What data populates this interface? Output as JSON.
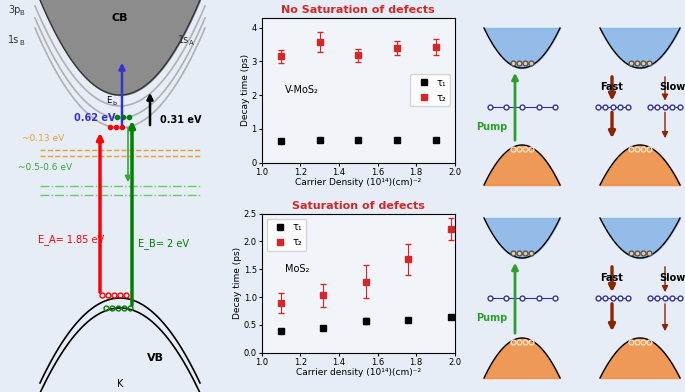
{
  "chart_data": [
    {
      "type": "scatter",
      "title": "No Saturation of defects",
      "x_label": "Carrier Density (10¹⁴)(cm)⁻²",
      "y_label": "Decay time (ps)",
      "annotation": "V-MoS₂",
      "xlim": [
        1.0,
        2.0
      ],
      "xticks": [
        1.0,
        1.2,
        1.4,
        1.6,
        1.8,
        2.0
      ],
      "ylim": [
        0,
        4.3
      ],
      "yticks": [
        0,
        1,
        2,
        3,
        4
      ],
      "legend": "center right",
      "series": [
        {
          "name": "τ₁",
          "color": "#000000",
          "marker": "s",
          "x": [
            1.1,
            1.3,
            1.5,
            1.7,
            1.9
          ],
          "values": [
            0.65,
            0.66,
            0.66,
            0.66,
            0.66
          ],
          "errors": [
            0.02,
            0.02,
            0.02,
            0.02,
            0.02
          ]
        },
        {
          "name": "τ₂",
          "color": "#d62728",
          "marker": "s",
          "x": [
            1.1,
            1.3,
            1.5,
            1.7,
            1.9
          ],
          "values": [
            3.15,
            3.57,
            3.18,
            3.4,
            3.43
          ],
          "errors": [
            0.2,
            0.3,
            0.2,
            0.2,
            0.25
          ]
        }
      ]
    },
    {
      "type": "scatter",
      "title": "Saturation of defects",
      "x_label": "Carrier density (10¹⁴)(cm)⁻²",
      "y_label": "Decay time (ps)",
      "annotation": "MoS₂",
      "xlim": [
        1.0,
        2.0
      ],
      "xticks": [
        1.0,
        1.2,
        1.4,
        1.6,
        1.8,
        2.0
      ],
      "ylim": [
        0.0,
        2.5
      ],
      "yticks": [
        0.0,
        0.5,
        1.0,
        1.5,
        2.0,
        2.5
      ],
      "legend": "upper left",
      "series": [
        {
          "name": "τ₁",
          "color": "#000000",
          "marker": "s",
          "x": [
            1.1,
            1.32,
            1.54,
            1.76,
            1.98
          ],
          "values": [
            0.39,
            0.45,
            0.57,
            0.59,
            0.64
          ],
          "errors": [
            0.02,
            0.04,
            0.05,
            0.03,
            0.03
          ]
        },
        {
          "name": "τ₂",
          "color": "#d62728",
          "marker": "s",
          "x": [
            1.1,
            1.32,
            1.54,
            1.76,
            1.98
          ],
          "values": [
            0.9,
            1.03,
            1.28,
            1.68,
            2.22
          ],
          "errors": [
            0.18,
            0.2,
            0.3,
            0.28,
            0.2
          ]
        }
      ]
    }
  ],
  "band_diagram": {
    "levels": [
      {
        "text": "3p",
        "sub": "B"
      },
      {
        "text": "1s",
        "sub": "B"
      },
      {
        "text": "1s",
        "sub": "A"
      }
    ],
    "cb": "CB",
    "vb": "VB",
    "k_point": "K",
    "binding": {
      "text": "E",
      "sub": "b"
    },
    "blue_energy": "0.62 eV",
    "black_energy": "0.31 eV",
    "orange_energy": "~0.13 eV",
    "green_energy": "~0.5-0.6 eV",
    "red_transition": "E_A= 1.85 eV",
    "green_transition": "E_B= 2 eV"
  },
  "schematics": {
    "pump": "Pump",
    "fast": "Fast",
    "slow": "Slow"
  }
}
